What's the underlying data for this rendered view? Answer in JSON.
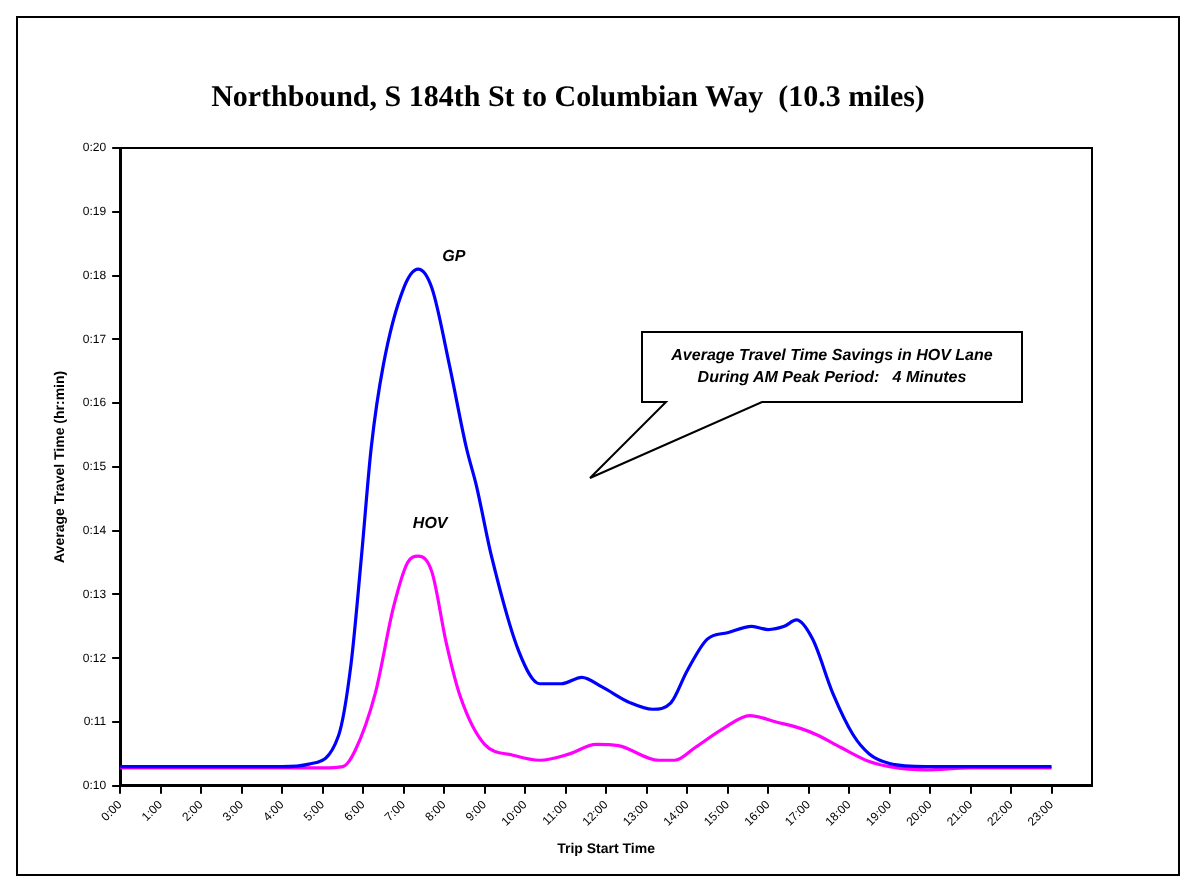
{
  "chart_data": {
    "type": "line",
    "title": "Northbound, S 184th St to Columbian Way  (10.3 miles)",
    "xlabel": "Trip Start Time",
    "ylabel": "Average Travel Time (hr:min)",
    "xlim": [
      0,
      24
    ],
    "xticks": [
      {
        "value": 0,
        "label": "0:00"
      },
      {
        "value": 1,
        "label": "1:00"
      },
      {
        "value": 2,
        "label": "2:00"
      },
      {
        "value": 3,
        "label": "3:00"
      },
      {
        "value": 4,
        "label": "4:00"
      },
      {
        "value": 5,
        "label": "5:00"
      },
      {
        "value": 6,
        "label": "6:00"
      },
      {
        "value": 7,
        "label": "7:00"
      },
      {
        "value": 8,
        "label": "8:00"
      },
      {
        "value": 9,
        "label": "9:00"
      },
      {
        "value": 10,
        "label": "10:00"
      },
      {
        "value": 11,
        "label": "11:00"
      },
      {
        "value": 12,
        "label": "12:00"
      },
      {
        "value": 13,
        "label": "13:00"
      },
      {
        "value": 14,
        "label": "14:00"
      },
      {
        "value": 15,
        "label": "15:00"
      },
      {
        "value": 16,
        "label": "16:00"
      },
      {
        "value": 17,
        "label": "17:00"
      },
      {
        "value": 18,
        "label": "18:00"
      },
      {
        "value": 19,
        "label": "19:00"
      },
      {
        "value": 20,
        "label": "20:00"
      },
      {
        "value": 21,
        "label": "21:00"
      },
      {
        "value": 22,
        "label": "22:00"
      },
      {
        "value": 23,
        "label": "23:00"
      }
    ],
    "ylim": [
      10,
      20
    ],
    "yticks": [
      {
        "value": 10,
        "label": "0:10"
      },
      {
        "value": 11,
        "label": "0:11"
      },
      {
        "value": 12,
        "label": "0:12"
      },
      {
        "value": 13,
        "label": "0:13"
      },
      {
        "value": 14,
        "label": "0:14"
      },
      {
        "value": 15,
        "label": "0:15"
      },
      {
        "value": 16,
        "label": "0:16"
      },
      {
        "value": 17,
        "label": "0:17"
      },
      {
        "value": 18,
        "label": "0:18"
      },
      {
        "value": 19,
        "label": "0:19"
      },
      {
        "value": 20,
        "label": "0:20"
      }
    ],
    "grid": false,
    "legend": false,
    "marker": "none",
    "line_style": "solid",
    "series": [
      {
        "name": "GP",
        "color": "#0000ff",
        "x": [
          0,
          1,
          2,
          3,
          4,
          4.66,
          5.39,
          5.7,
          5.96,
          6.2,
          6.5,
          7,
          7.36,
          7.7,
          8.13,
          8.55,
          8.8,
          9.17,
          9.85,
          10.36,
          10.9,
          11.4,
          11.9,
          12.6,
          13.15,
          13.6,
          14.0,
          14.5,
          15.0,
          15.6,
          16.0,
          16.4,
          16.7,
          17.1,
          17.6,
          18.1,
          18.5,
          19.0,
          19.9,
          21,
          22,
          23
        ],
        "values": [
          10.3,
          10.3,
          10.3,
          10.3,
          10.3,
          10.34,
          10.78,
          11.9,
          13.6,
          15.3,
          16.6,
          17.8,
          18.1,
          17.8,
          16.6,
          15.3,
          14.7,
          13.6,
          12.1,
          11.6,
          11.6,
          11.7,
          11.55,
          11.3,
          11.2,
          11.3,
          11.8,
          12.3,
          12.4,
          12.5,
          12.45,
          12.5,
          12.6,
          12.3,
          11.45,
          10.8,
          10.5,
          10.35,
          10.3,
          10.3,
          10.3,
          10.3
        ]
      },
      {
        "name": "HOV",
        "color": "#ff00ff",
        "x": [
          0,
          1,
          2,
          3,
          4,
          5,
          5.5,
          5.8,
          6.3,
          6.75,
          7.1,
          7.36,
          7.7,
          8.05,
          8.4,
          9.0,
          9.7,
          10.36,
          11.1,
          11.75,
          12.3,
          13.3,
          13.7,
          14.2,
          14.9,
          15.55,
          16.2,
          16.8,
          17.2,
          17.8,
          18.5,
          19.0,
          19.9,
          21,
          22,
          23
        ],
        "values": [
          10.28,
          10.28,
          10.28,
          10.28,
          10.28,
          10.28,
          10.3,
          10.55,
          11.45,
          12.8,
          13.5,
          13.6,
          13.35,
          12.25,
          11.4,
          10.65,
          10.48,
          10.4,
          10.5,
          10.65,
          10.63,
          10.4,
          10.4,
          10.6,
          10.9,
          11.1,
          11.0,
          10.9,
          10.8,
          10.6,
          10.38,
          10.3,
          10.25,
          10.28,
          10.28,
          10.28
        ]
      }
    ],
    "annotations": [
      "Average Travel Time Savings in HOV Lane\nDuring AM Peak Period:   4 Minutes"
    ]
  }
}
